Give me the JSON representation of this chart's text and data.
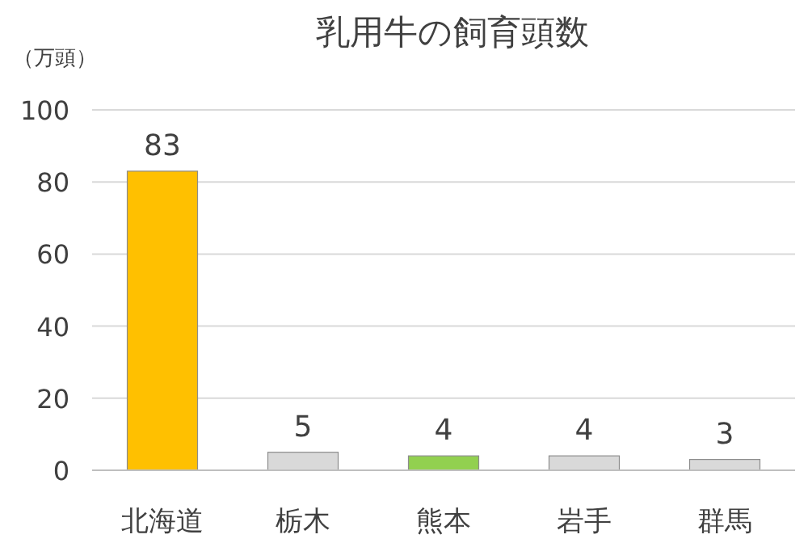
{
  "chart_data": {
    "type": "bar",
    "title": "乳用牛の飼育頭数",
    "ylabel": "（万頭）",
    "categories": [
      "北海道",
      "栃木",
      "熊本",
      "岩手",
      "群馬"
    ],
    "values": [
      83,
      5,
      4,
      4,
      3
    ],
    "colors": [
      "#ffc000",
      "#d9d9d9",
      "#92d050",
      "#d9d9d9",
      "#d9d9d9"
    ],
    "ylim": [
      0,
      100
    ],
    "yticks": [
      0,
      20,
      40,
      60,
      80,
      100
    ],
    "grid": "y",
    "data_labels": true
  }
}
